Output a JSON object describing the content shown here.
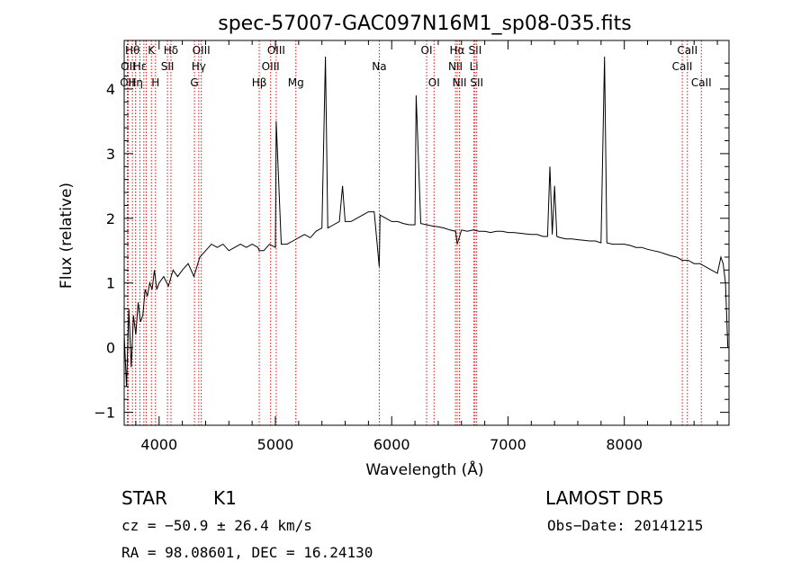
{
  "chart_data": {
    "type": "line",
    "title": "spec-57007-GAC097N16M1_sp08-035.fits",
    "xlabel": "Wavelength (Å)",
    "ylabel": "Flux (relative)",
    "xlim": [
      3700,
      8900
    ],
    "ylim": [
      -1.2,
      4.75
    ],
    "x_ticks": [
      4000,
      5000,
      6000,
      7000,
      8000
    ],
    "x_tick_labels": [
      "4000",
      "5000",
      "6000",
      "7000",
      "8000"
    ],
    "y_ticks": [
      -1,
      0,
      1,
      2,
      3,
      4
    ],
    "y_tick_labels": [
      "−1",
      "0",
      "1",
      "2",
      "3",
      "4"
    ],
    "grid": false,
    "series": [
      {
        "x": [
          3700,
          3720,
          3740,
          3760,
          3780,
          3800,
          3820,
          3840,
          3860,
          3880,
          3900,
          3920,
          3940,
          3960,
          3980,
          4000,
          4040,
          4080,
          4120,
          4160,
          4200,
          4250,
          4300,
          4350,
          4400,
          4450,
          4500,
          4550,
          4600,
          4650,
          4700,
          4750,
          4800,
          4850,
          4861,
          4900,
          4950,
          5000,
          5007,
          5050,
          5100,
          5150,
          5200,
          5250,
          5300,
          5350,
          5400,
          5430,
          5450,
          5500,
          5550,
          5577,
          5600,
          5650,
          5700,
          5750,
          5800,
          5850,
          5893,
          5900,
          5950,
          6000,
          6050,
          6100,
          6150,
          6200,
          6210,
          6250,
          6300,
          6350,
          6400,
          6450,
          6500,
          6550,
          6563,
          6600,
          6650,
          6700,
          6750,
          6800,
          6850,
          6900,
          6950,
          7000,
          7050,
          7100,
          7150,
          7200,
          7250,
          7300,
          7340,
          7360,
          7380,
          7400,
          7420,
          7450,
          7500,
          7550,
          7600,
          7650,
          7700,
          7750,
          7800,
          7830,
          7850,
          7900,
          7950,
          8000,
          8050,
          8100,
          8150,
          8200,
          8250,
          8300,
          8350,
          8400,
          8450,
          8500,
          8550,
          8600,
          8650,
          8700,
          8750,
          8800,
          8830,
          8850,
          8870,
          8880,
          8890
        ],
        "y": [
          0.2,
          -0.6,
          0.6,
          -0.3,
          0.5,
          0.2,
          0.7,
          0.4,
          0.5,
          0.9,
          0.8,
          1.0,
          0.9,
          1.2,
          0.9,
          1.0,
          1.1,
          0.95,
          1.2,
          1.1,
          1.2,
          1.3,
          1.1,
          1.4,
          1.5,
          1.6,
          1.55,
          1.6,
          1.5,
          1.55,
          1.6,
          1.55,
          1.6,
          1.55,
          1.5,
          1.5,
          1.6,
          1.55,
          3.5,
          1.6,
          1.6,
          1.65,
          1.7,
          1.75,
          1.7,
          1.8,
          1.85,
          4.5,
          1.85,
          1.9,
          1.95,
          2.5,
          1.95,
          1.95,
          2.0,
          2.05,
          2.1,
          2.1,
          1.25,
          2.05,
          2.0,
          1.95,
          1.95,
          1.92,
          1.9,
          1.9,
          3.9,
          1.92,
          1.9,
          1.88,
          1.87,
          1.85,
          1.82,
          1.8,
          1.6,
          1.82,
          1.8,
          1.82,
          1.8,
          1.8,
          1.78,
          1.8,
          1.8,
          1.78,
          1.78,
          1.77,
          1.76,
          1.75,
          1.75,
          1.72,
          1.72,
          2.8,
          1.75,
          2.5,
          1.72,
          1.7,
          1.68,
          1.68,
          1.67,
          1.66,
          1.65,
          1.65,
          1.62,
          4.5,
          1.62,
          1.6,
          1.6,
          1.6,
          1.58,
          1.55,
          1.55,
          1.52,
          1.5,
          1.48,
          1.45,
          1.42,
          1.4,
          1.35,
          1.35,
          1.3,
          1.3,
          1.25,
          1.2,
          1.15,
          1.4,
          1.3,
          1.0,
          0.5,
          0.0
        ]
      }
    ],
    "line_markers": [
      {
        "wave": 3727,
        "label": "OII",
        "row": 2
      },
      {
        "wave": 3734,
        "label": "OII",
        "row": 1
      },
      {
        "wave": 3771,
        "label": "Hθ",
        "row": 0
      },
      {
        "wave": 3798,
        "label": "Hη",
        "row": 2
      },
      {
        "wave": 3835,
        "label": "Hε",
        "row": 1
      },
      {
        "wave": 3869,
        "label": "",
        "row": 0
      },
      {
        "wave": 3889,
        "label": "",
        "row": 0
      },
      {
        "wave": 3934,
        "label": "K",
        "row": 0
      },
      {
        "wave": 3969,
        "label": "H",
        "row": 2
      },
      {
        "wave": 4072,
        "label": "SII",
        "row": 1
      },
      {
        "wave": 4102,
        "label": "Hδ",
        "row": 0
      },
      {
        "wave": 4304,
        "label": "G",
        "row": 2
      },
      {
        "wave": 4341,
        "label": "Hγ",
        "row": 1
      },
      {
        "wave": 4363,
        "label": "OIII",
        "row": 0
      },
      {
        "wave": 4861,
        "label": "Hβ",
        "row": 2
      },
      {
        "wave": 4959,
        "label": "OIII",
        "row": 1
      },
      {
        "wave": 5007,
        "label": "OIII",
        "row": 0
      },
      {
        "wave": 5176,
        "label": "Mg",
        "row": 2
      },
      {
        "wave": 5893,
        "label": "Na",
        "row": 1
      },
      {
        "wave": 6300,
        "label": "OI",
        "row": 0
      },
      {
        "wave": 6364,
        "label": "OI",
        "row": 2
      },
      {
        "wave": 6548,
        "label": "NII",
        "row": 1
      },
      {
        "wave": 6563,
        "label": "Hα",
        "row": 0
      },
      {
        "wave": 6583,
        "label": "NII",
        "row": 2
      },
      {
        "wave": 6707,
        "label": "Li",
        "row": 1
      },
      {
        "wave": 6717,
        "label": "SII",
        "row": 0
      },
      {
        "wave": 6731,
        "label": "SII",
        "row": 2
      },
      {
        "wave": 8498,
        "label": "CaII",
        "row": 1
      },
      {
        "wave": 8542,
        "label": "CaII",
        "row": 0
      },
      {
        "wave": 8662,
        "label": "CaII",
        "row": 2
      }
    ]
  },
  "footer": {
    "class_label": "STAR",
    "subclass": "K1",
    "survey": "LAMOST DR5",
    "cz": "cz = −50.9 ± 26.4 km/s",
    "obs_date": "Obs−Date: 20141215",
    "coords": "RA =  98.08601, DEC =  16.24130"
  }
}
